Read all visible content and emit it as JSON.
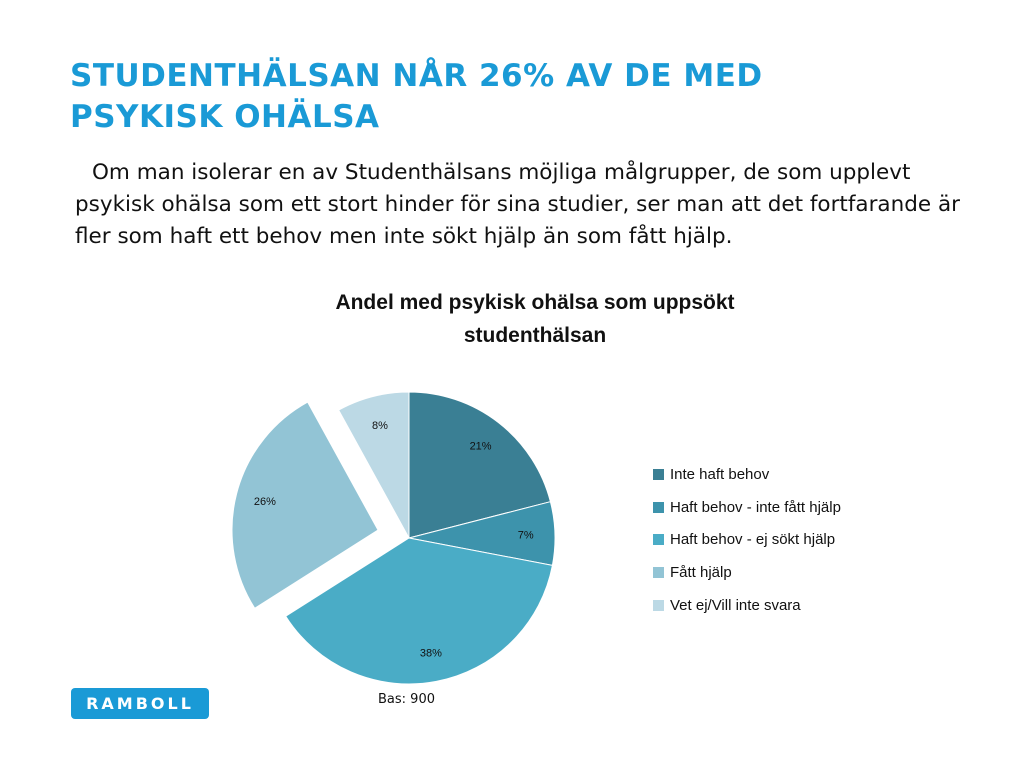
{
  "slide": {
    "title_line1": "STUDENTHÄLSAN NÅR 26% AV DE MED",
    "title_line2": "PSYKISK OHÄLSA",
    "body": "Om man isolerar en av Studenthälsans möjliga målgrupper, de som upplevt psykisk ohälsa som ett stort hinder för sina studier, ser man att det fortfarande är fler som haft ett behov men inte sökt hjälp än som fått hjälp.",
    "base_note": "Bas: 900",
    "logo_text": "RAMBOLL"
  },
  "chart_data": {
    "type": "pie",
    "title_line1": "Andel med psykisk ohälsa som uppsökt",
    "title_line2": "studenthälsan",
    "unit": "%",
    "categories": [
      "Inte haft behov",
      "Haft behov - inte fått hjälp",
      "Haft behov - ej sökt hjälp",
      "Fått hjälp",
      "Vet ej/Vill inte svara"
    ],
    "values": [
      21,
      7,
      38,
      26,
      8
    ],
    "data_labels": [
      "21%",
      "7%",
      "38%",
      "26%",
      "8%"
    ],
    "colors": [
      "#3a7f94",
      "#3d93ac",
      "#4aacc6",
      "#92c4d5",
      "#bcd9e5"
    ],
    "exploded_index": 3,
    "start_angle_deg": 0,
    "direction": "clockwise",
    "legend_position": "right"
  }
}
